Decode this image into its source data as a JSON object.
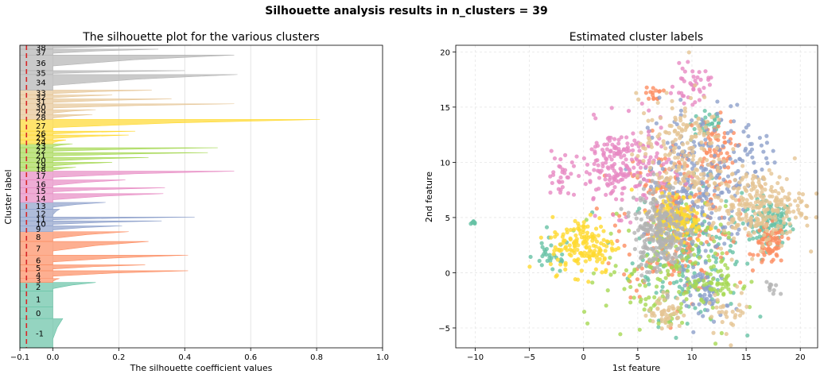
{
  "suptitle": "Silhouette analysis results in n_clusters = 39",
  "palette": [
    "#66c2a5",
    "#fc8d62",
    "#8da0cb",
    "#e78ac3",
    "#a6d854",
    "#ffd92f",
    "#e5c494",
    "#b3b3b3"
  ],
  "chart_data": [
    {
      "type": "area",
      "title": "The silhouette plot for the various clusters",
      "xlabel": "The silhouette coefficient values",
      "ylabel": "Cluster label",
      "xlim": [
        -0.1,
        1.0
      ],
      "xticks": [
        -0.1,
        0.0,
        0.2,
        0.4,
        0.6,
        0.8,
        1.0
      ],
      "xtick_labels": [
        "−0.1",
        "0.0",
        "0.2",
        "0.4",
        "0.6",
        "0.8",
        "1.0"
      ],
      "grid": true,
      "average_silhouette": -0.08,
      "clusters": [
        {
          "label": "-1",
          "color": "#66c2a5",
          "peak": 0.03,
          "min": -0.1,
          "size": 30
        },
        {
          "label": "0",
          "color": "#66c2a5",
          "peak": 0.0,
          "min": -0.1,
          "size": 12
        },
        {
          "label": "1",
          "color": "#66c2a5",
          "peak": 0.0,
          "min": -0.1,
          "size": 16
        },
        {
          "label": "2",
          "color": "#66c2a5",
          "peak": 0.13,
          "min": -0.1,
          "size": 9
        },
        {
          "label": "3",
          "color": "#fc8d62",
          "peak": 0.02,
          "min": -0.1,
          "size": 4
        },
        {
          "label": "4",
          "color": "#fc8d62",
          "peak": 0.41,
          "min": -0.1,
          "size": 8
        },
        {
          "label": "5",
          "color": "#fc8d62",
          "peak": 0.28,
          "min": -0.1,
          "size": 6
        },
        {
          "label": "6",
          "color": "#fc8d62",
          "peak": 0.41,
          "min": -0.1,
          "size": 10
        },
        {
          "label": "7",
          "color": "#fc8d62",
          "peak": 0.29,
          "min": -0.1,
          "size": 14
        },
        {
          "label": "8",
          "color": "#fc8d62",
          "peak": 0.23,
          "min": -0.1,
          "size": 10
        },
        {
          "label": "9",
          "color": "#8da0cb",
          "peak": 0.21,
          "min": -0.1,
          "size": 6
        },
        {
          "label": "10",
          "color": "#8da0cb",
          "peak": 0.33,
          "min": -0.1,
          "size": 5
        },
        {
          "label": "11",
          "color": "#8da0cb",
          "peak": 0.43,
          "min": -0.1,
          "size": 4
        },
        {
          "label": "12",
          "color": "#8da0cb",
          "peak": 0.02,
          "min": -0.1,
          "size": 8
        },
        {
          "label": "13",
          "color": "#8da0cb",
          "peak": 0.16,
          "min": -0.1,
          "size": 7
        },
        {
          "label": "14",
          "color": "#e78ac3",
          "peak": 0.335,
          "min": -0.1,
          "size": 9
        },
        {
          "label": "15",
          "color": "#e78ac3",
          "peak": 0.34,
          "min": -0.1,
          "size": 6
        },
        {
          "label": "16",
          "color": "#e78ac3",
          "peak": 0.22,
          "min": -0.1,
          "size": 8
        },
        {
          "label": "17",
          "color": "#e78ac3",
          "peak": 0.55,
          "min": -0.1,
          "size": 9
        },
        {
          "label": "18",
          "color": "#a6d854",
          "peak": 0.07,
          "min": -0.1,
          "size": 4
        },
        {
          "label": "19",
          "color": "#a6d854",
          "peak": 0.18,
          "min": -0.1,
          "size": 5
        },
        {
          "label": "20",
          "color": "#a6d854",
          "peak": 0.29,
          "min": -0.1,
          "size": 5
        },
        {
          "label": "21",
          "color": "#a6d854",
          "peak": 0.47,
          "min": -0.1,
          "size": 5
        },
        {
          "label": "22",
          "color": "#a6d854",
          "peak": 0.5,
          "min": -0.1,
          "size": 5
        },
        {
          "label": "23",
          "color": "#a6d854",
          "peak": 0.06,
          "min": -0.1,
          "size": 4
        },
        {
          "label": "24",
          "color": "#ffd92f",
          "peak": 0.04,
          "min": -0.1,
          "size": 4
        },
        {
          "label": "25",
          "color": "#ffd92f",
          "peak": 0.23,
          "min": -0.1,
          "size": 5
        },
        {
          "label": "26",
          "color": "#ffd92f",
          "peak": 0.25,
          "min": -0.1,
          "size": 4
        },
        {
          "label": "27",
          "color": "#ffd92f",
          "peak": 0.81,
          "min": -0.1,
          "size": 12
        },
        {
          "label": "28",
          "color": "#e5c494",
          "peak": 0.12,
          "min": -0.1,
          "size": 5
        },
        {
          "label": "29",
          "color": "#e5c494",
          "peak": 0.13,
          "min": -0.1,
          "size": 5
        },
        {
          "label": "30",
          "color": "#e5c494",
          "peak": 0.55,
          "min": -0.1,
          "size": 6
        },
        {
          "label": "31",
          "color": "#e5c494",
          "peak": 0.36,
          "min": -0.1,
          "size": 5
        },
        {
          "label": "32",
          "color": "#e5c494",
          "peak": 0.18,
          "min": -0.1,
          "size": 4
        },
        {
          "label": "33",
          "color": "#e5c494",
          "peak": 0.3,
          "min": -0.1,
          "size": 5
        },
        {
          "label": "34",
          "color": "#b3b3b3",
          "peak": 0.56,
          "min": -0.1,
          "size": 16
        },
        {
          "label": "35",
          "color": "#b3b3b3",
          "peak": 0.4,
          "min": -0.1,
          "size": 4
        },
        {
          "label": "36",
          "color": "#b3b3b3",
          "peak": 0.55,
          "min": -0.1,
          "size": 16
        },
        {
          "label": "37",
          "color": "#b3b3b3",
          "peak": 0.32,
          "min": -0.1,
          "size": 6
        },
        {
          "label": "38",
          "color": "#b3b3b3",
          "peak": 0.42,
          "min": -0.1,
          "size": 4
        }
      ]
    },
    {
      "type": "scatter",
      "title": "Estimated cluster labels",
      "xlabel": "1st feature",
      "ylabel": "2nd feature",
      "xlim": [
        -11.8,
        21.6
      ],
      "ylim": [
        -6.8,
        20.6
      ],
      "xticks": [
        -10,
        -5,
        0,
        5,
        10,
        15,
        20
      ],
      "xtick_labels": [
        "−10",
        "−5",
        "0",
        "5",
        "10",
        "15",
        "20"
      ],
      "yticks": [
        -5,
        0,
        5,
        10,
        15,
        20
      ],
      "ytick_labels": [
        "−5",
        "0",
        "5",
        "10",
        "15",
        "20"
      ],
      "grid": true,
      "point_alpha": 0.8,
      "groups": [
        {
          "color": "#66c2a5",
          "cx": -10.1,
          "cy": 4.5,
          "sx": 0.15,
          "sy": 0.12,
          "n": 8
        },
        {
          "color": "#66c2a5",
          "cx": 17.2,
          "cy": 4.5,
          "sx": 1.0,
          "sy": 1.0,
          "n": 120
        },
        {
          "color": "#66c2a5",
          "cx": 9.5,
          "cy": 2.0,
          "sx": 2.5,
          "sy": 3.0,
          "n": 200
        },
        {
          "color": "#66c2a5",
          "cx": 11.5,
          "cy": 13.5,
          "sx": 0.8,
          "sy": 0.8,
          "n": 30
        },
        {
          "color": "#66c2a5",
          "cx": -3.0,
          "cy": 1.5,
          "sx": 0.9,
          "sy": 0.8,
          "n": 30
        },
        {
          "color": "#fc8d62",
          "cx": 17.2,
          "cy": 2.5,
          "sx": 0.7,
          "sy": 0.9,
          "n": 80
        },
        {
          "color": "#fc8d62",
          "cx": 8.5,
          "cy": 5.0,
          "sx": 2.5,
          "sy": 3.5,
          "n": 260
        },
        {
          "color": "#fc8d62",
          "cx": 12.0,
          "cy": 11.0,
          "sx": 1.0,
          "sy": 1.5,
          "n": 60
        },
        {
          "color": "#fc8d62",
          "cx": 6.5,
          "cy": 16.2,
          "sx": 0.4,
          "sy": 0.3,
          "n": 15
        },
        {
          "color": "#8da0cb",
          "cx": 10.5,
          "cy": 8.0,
          "sx": 2.2,
          "sy": 3.5,
          "n": 230
        },
        {
          "color": "#8da0cb",
          "cx": 11.5,
          "cy": -2.0,
          "sx": 1.0,
          "sy": 1.2,
          "n": 60
        },
        {
          "color": "#8da0cb",
          "cx": 15.5,
          "cy": 10.5,
          "sx": 1.2,
          "sy": 1.2,
          "n": 40
        },
        {
          "color": "#e78ac3",
          "cx": 3.5,
          "cy": 9.5,
          "sx": 2.2,
          "sy": 2.0,
          "n": 220
        },
        {
          "color": "#e78ac3",
          "cx": 10.0,
          "cy": 17.0,
          "sx": 0.8,
          "sy": 0.8,
          "n": 40
        },
        {
          "color": "#e78ac3",
          "cx": -2.0,
          "cy": 9.0,
          "sx": 0.8,
          "sy": 1.2,
          "n": 25
        },
        {
          "color": "#a6d854",
          "cx": 7.5,
          "cy": 0.0,
          "sx": 2.8,
          "sy": 3.0,
          "n": 170
        },
        {
          "color": "#a6d854",
          "cx": 12.5,
          "cy": -1.0,
          "sx": 1.0,
          "sy": 1.0,
          "n": 40
        },
        {
          "color": "#ffd92f",
          "cx": 0.0,
          "cy": 2.5,
          "sx": 1.5,
          "sy": 1.3,
          "n": 160
        },
        {
          "color": "#ffd92f",
          "cx": 8.5,
          "cy": 5.0,
          "sx": 1.2,
          "sy": 1.2,
          "n": 140
        },
        {
          "color": "#e5c494",
          "cx": 16.0,
          "cy": 6.0,
          "sx": 2.2,
          "sy": 1.6,
          "n": 260
        },
        {
          "color": "#e5c494",
          "cx": 9.0,
          "cy": 11.0,
          "sx": 2.0,
          "sy": 2.5,
          "n": 180
        },
        {
          "color": "#e5c494",
          "cx": 7.5,
          "cy": -3.5,
          "sx": 0.8,
          "sy": 0.8,
          "n": 50
        },
        {
          "color": "#e5c494",
          "cx": 13.5,
          "cy": -3.5,
          "sx": 1.0,
          "sy": 1.0,
          "n": 30
        },
        {
          "color": "#b3b3b3",
          "cx": 7.0,
          "cy": 4.0,
          "sx": 1.2,
          "sy": 2.0,
          "n": 260
        },
        {
          "color": "#b3b3b3",
          "cx": 17.5,
          "cy": -1.5,
          "sx": 0.3,
          "sy": 0.3,
          "n": 10
        }
      ]
    }
  ]
}
